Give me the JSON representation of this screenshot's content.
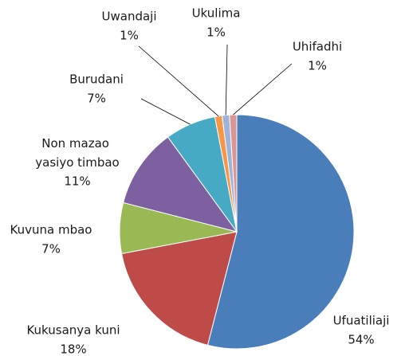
{
  "chart_data": {
    "type": "pie",
    "categories": [
      "Ufuatiliaji",
      "Kukusanya kuni",
      "Kuvuna mbao",
      "Non mazao yasiyo timbao",
      "Burudani",
      "Uwandaji",
      "Ukulima",
      "Uhifadhi"
    ],
    "values": [
      54,
      18,
      7,
      11,
      7,
      1,
      1,
      1
    ],
    "value_labels": [
      "54%",
      "18%",
      "7%",
      "11%",
      "7%",
      "1%",
      "1%",
      "1%"
    ],
    "colors": [
      "#4a7ebb",
      "#be4b48",
      "#98b954",
      "#7d60a0",
      "#46aac5",
      "#f79646",
      "#9fb3d9",
      "#d99694"
    ]
  }
}
